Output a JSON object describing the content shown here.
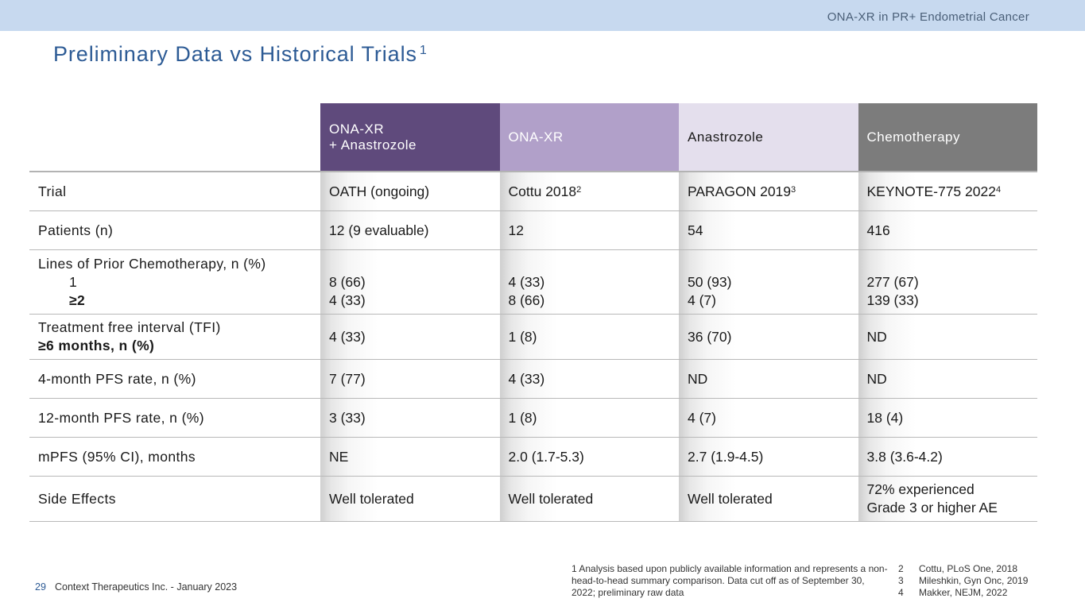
{
  "header": {
    "top_text": "ONA-XR in PR+ Endometrial Cancer"
  },
  "title": {
    "text": "Preliminary Data vs Historical Trials",
    "ref": "1"
  },
  "table": {
    "columns": [
      {
        "line1": "ONA-XR",
        "line2": "+ Anastrozole"
      },
      {
        "line1": "ONA-XR",
        "line2": ""
      },
      {
        "line1": "Anastrozole",
        "line2": ""
      },
      {
        "line1": "Chemotherapy",
        "line2": ""
      }
    ],
    "trial": {
      "label": "Trial",
      "values": [
        {
          "text": "OATH (ongoing)",
          "ref": ""
        },
        {
          "text": "Cottu 2018",
          "ref": "2"
        },
        {
          "text": "PARAGON 2019",
          "ref": "3"
        },
        {
          "text": "KEYNOTE-775 2022",
          "ref": "4"
        }
      ]
    },
    "patients": {
      "label": "Patients (n)",
      "values": [
        "12 (9 evaluable)",
        "12",
        "54",
        "416"
      ]
    },
    "lines": {
      "label": "Lines of Prior Chemotherapy, n (%)",
      "sub1": "1",
      "sub2": "≥2",
      "values1": [
        "8 (66)",
        "4 (33)",
        "50 (93)",
        "277 (67)"
      ],
      "values2": [
        "4 (33)",
        "8 (66)",
        "4 (7)",
        "139 (33)"
      ]
    },
    "tfi": {
      "label1": "Treatment free interval (TFI)",
      "label2": "≥6 months, n (%)",
      "values": [
        "4 (33)",
        "1 (8)",
        "36 (70)",
        "ND"
      ]
    },
    "pfs4": {
      "label": "4-month PFS rate, n (%)",
      "values": [
        "7 (77)",
        "4 (33)",
        "ND",
        "ND"
      ]
    },
    "pfs12": {
      "label": "12-month PFS rate, n (%)",
      "values": [
        "3 (33)",
        "1 (8)",
        "4 (7)",
        "18 (4)"
      ]
    },
    "mpfs": {
      "label": "mPFS (95% CI), months",
      "values": [
        "NE",
        "2.0 (1.7-5.3)",
        "2.7 (1.9-4.5)",
        "3.8 (3.6-4.2)"
      ]
    },
    "side": {
      "label": "Side Effects",
      "values": [
        "Well tolerated",
        "Well tolerated",
        "Well tolerated"
      ],
      "chemo1": "72% experienced",
      "chemo2": "Grade 3 or higher AE"
    }
  },
  "footer": {
    "page": "29",
    "company": "Context Therapeutics Inc. - January 2023",
    "footnote1": "1  Analysis based upon publicly available information and represents a non-head-to-head summary comparison. Data cut off as of September 30, 2022; preliminary raw data",
    "refs": [
      {
        "num": "2",
        "text": "Cottu, PLoS One, 2018"
      },
      {
        "num": "3",
        "text": "Mileshkin, Gyn Onc, 2019"
      },
      {
        "num": "4",
        "text": "Makker, NEJM, 2022"
      }
    ]
  }
}
